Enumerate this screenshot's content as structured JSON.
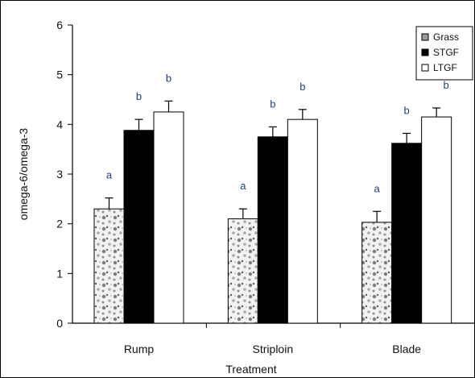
{
  "chart_data": {
    "type": "bar",
    "title": "",
    "xlabel": "Treatment",
    "ylabel": "omega-6/omega-3",
    "ylim": [
      0,
      6
    ],
    "yticks": [
      0,
      1,
      2,
      3,
      4,
      5,
      6
    ],
    "categories": [
      "Rump",
      "Striploin",
      "Blade"
    ],
    "legend_position": "top-right",
    "grid": false,
    "series": [
      {
        "name": "Grass",
        "values": [
          2.3,
          2.1,
          2.03
        ],
        "errors": [
          0.22,
          0.2,
          0.22
        ],
        "letters": [
          "a",
          "a",
          "a"
        ],
        "fill": "pattern",
        "color": "#9a9a9a"
      },
      {
        "name": "STGF",
        "values": [
          3.88,
          3.75,
          3.62
        ],
        "errors": [
          0.22,
          0.2,
          0.2
        ],
        "letters": [
          "b",
          "b",
          "b"
        ],
        "fill": "solid",
        "color": "#000000"
      },
      {
        "name": "LTGF",
        "values": [
          4.25,
          4.1,
          4.15
        ],
        "errors": [
          0.22,
          0.2,
          0.18
        ],
        "letters": [
          "b",
          "b",
          "b"
        ],
        "fill": "solid",
        "color": "#ffffff"
      }
    ]
  }
}
